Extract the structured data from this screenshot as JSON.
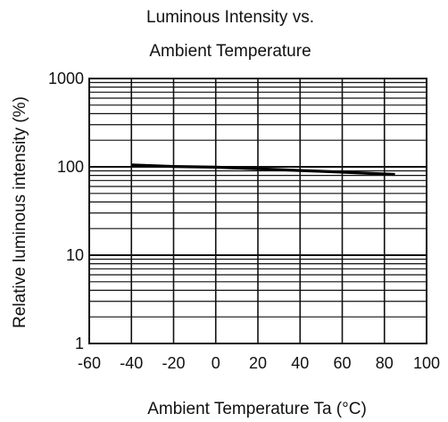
{
  "chart_data": {
    "type": "line",
    "title_lines": [
      "Luminous Intensity vs.",
      "Ambient Temperature"
    ],
    "xlabel": "Ambient Temperature Ta (°C)",
    "ylabel": "Relative luminous intensity   (%)",
    "x_scale": "linear",
    "y_scale": "log",
    "xlim": [
      -60,
      100
    ],
    "ylim": [
      1,
      1000
    ],
    "x_ticks": [
      -60,
      -40,
      -20,
      0,
      20,
      40,
      60,
      80,
      100
    ],
    "x_tick_labels": [
      "-60",
      "-40",
      "-20",
      "0",
      "20",
      "40",
      "60",
      "80",
      "100"
    ],
    "y_ticks": [
      1,
      10,
      100,
      1000
    ],
    "y_tick_labels": [
      "1",
      "10",
      "100",
      "1000"
    ],
    "grid": true,
    "series": [
      {
        "x": [
          -40,
          -30,
          -20,
          -10,
          0,
          10,
          20,
          30,
          40,
          50,
          60,
          70,
          80,
          85
        ],
        "y": [
          105,
          103,
          101,
          100,
          99,
          97,
          95,
          93,
          91,
          89,
          87,
          85,
          83,
          82
        ]
      }
    ]
  }
}
